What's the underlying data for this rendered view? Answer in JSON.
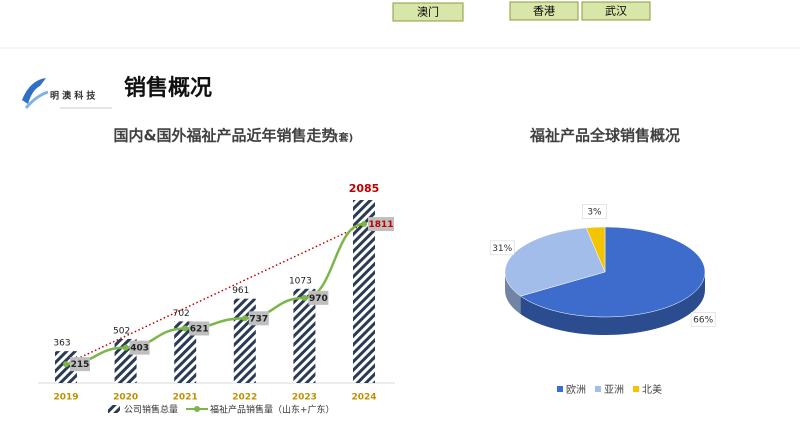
{
  "header": {
    "buttons": [
      "澳门",
      "香港",
      "武汉"
    ],
    "logo_text": "明 澳 科 技",
    "title": "销售概况"
  },
  "chart_data": [
    {
      "type": "bar-line",
      "title": "国内&国外福祉产品近年销售走势",
      "title_unit": "(套)",
      "categories": [
        "2019",
        "2020",
        "2021",
        "2022",
        "2023",
        "2024"
      ],
      "highlight_last_color": "#c00000",
      "trendline": true,
      "series": [
        {
          "name": "公司销售总量",
          "type": "bar",
          "color": "#2b3a55",
          "values": [
            363,
            502,
            702,
            961,
            1073,
            2085
          ]
        },
        {
          "name": "福祉产品销售量（山东+广东）",
          "type": "line",
          "color": "#7ab648",
          "values": [
            215,
            403,
            621,
            737,
            970,
            1811
          ]
        }
      ]
    },
    {
      "type": "pie",
      "title": "福祉产品全球销售概况",
      "categories": [
        "欧洲",
        "亚洲",
        "北美"
      ],
      "values": [
        66,
        31,
        3
      ],
      "value_labels": [
        "66%",
        "31%",
        "3%"
      ],
      "colors": [
        "#3d6ccc",
        "#a3bdeb",
        "#f5c400"
      ]
    }
  ]
}
